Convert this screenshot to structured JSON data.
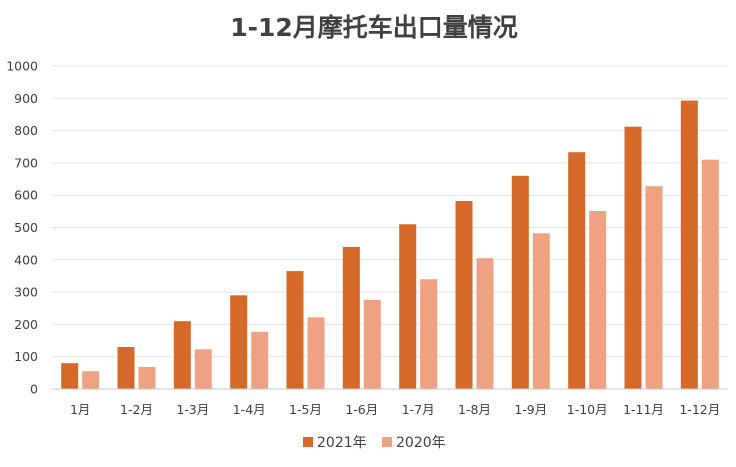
{
  "chart_data": {
    "type": "bar",
    "title": "1-12月摩托车出口量情况",
    "xlabel": "",
    "ylabel": "",
    "categories": [
      "1月",
      "1-2月",
      "1-3月",
      "1-4月",
      "1-5月",
      "1-6月",
      "1-7月",
      "1-8月",
      "1-9月",
      "1-10月",
      "1-11月",
      "1-12月"
    ],
    "series": [
      {
        "name": "2021年",
        "color": "#d4692a",
        "values": [
          80,
          130,
          210,
          290,
          365,
          440,
          510,
          582,
          660,
          733,
          812,
          893
        ]
      },
      {
        "name": "2020年",
        "color": "#efa281",
        "values": [
          55,
          68,
          123,
          177,
          222,
          276,
          340,
          405,
          482,
          551,
          628,
          710
        ]
      }
    ],
    "ylim": [
      0,
      1000
    ],
    "yticks": [
      0,
      100,
      200,
      300,
      400,
      500,
      600,
      700,
      800,
      900,
      1000
    ],
    "grid": true,
    "legend_position": "bottom"
  }
}
